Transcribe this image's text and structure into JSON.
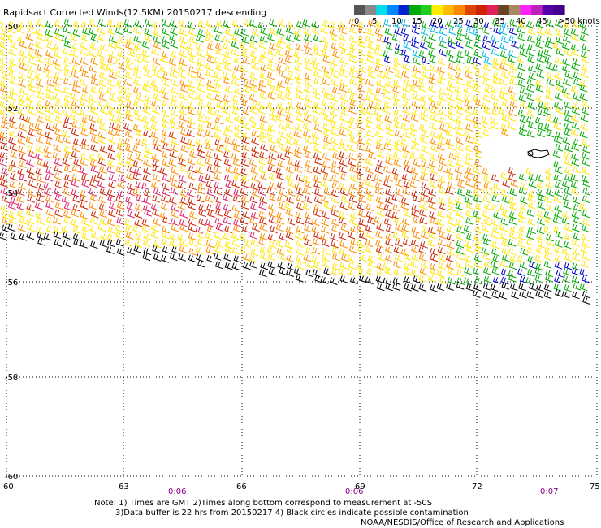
{
  "header": {
    "title": "Rapidsact Corrected Winds(12.5KM) 20150217 descending"
  },
  "colorbar": {
    "colors": [
      "#555555",
      "#8a8a8a",
      "#00ddee",
      "#0088ff",
      "#0022cc",
      "#00aa00",
      "#22cc22",
      "#ffee00",
      "#ffbb00",
      "#ff8800",
      "#dd4400",
      "#cc2200",
      "#dd2255",
      "#664422",
      "#aa8866",
      "#ff22ff",
      "#bb22bb",
      "#5500aa",
      "#440088"
    ],
    "ticks": [
      "0",
      "5",
      "10",
      "15",
      "20",
      "25",
      "30",
      "35",
      "40",
      "45",
      ">50 knots"
    ]
  },
  "axes": {
    "lat_labels": [
      "-50",
      "-52",
      "-54",
      "-56",
      "-58",
      "-60"
    ],
    "lon_labels": [
      "60",
      "63",
      "66",
      "69",
      "72",
      "75"
    ],
    "time_labels": [
      "0:06",
      "0:06",
      "0:07"
    ]
  },
  "legend_colors": {
    "black": "#000000",
    "green": "#00aa00",
    "yellow": "#ffe600",
    "orange": "#ff8c00",
    "red": "#cc2200",
    "magenta": "#dd2266",
    "blue": "#0000cc",
    "cyan": "#00bbee"
  },
  "notes": {
    "line1": "Note: 1) Times are GMT 2)Times along bottom correspond to measurement at -50S",
    "line2": "3)Data buffer is 22 hrs from 20150217 4) Black circles indicate possible contamination",
    "credit": "NOAA/NESDIS/Office of Research and Applications"
  }
}
